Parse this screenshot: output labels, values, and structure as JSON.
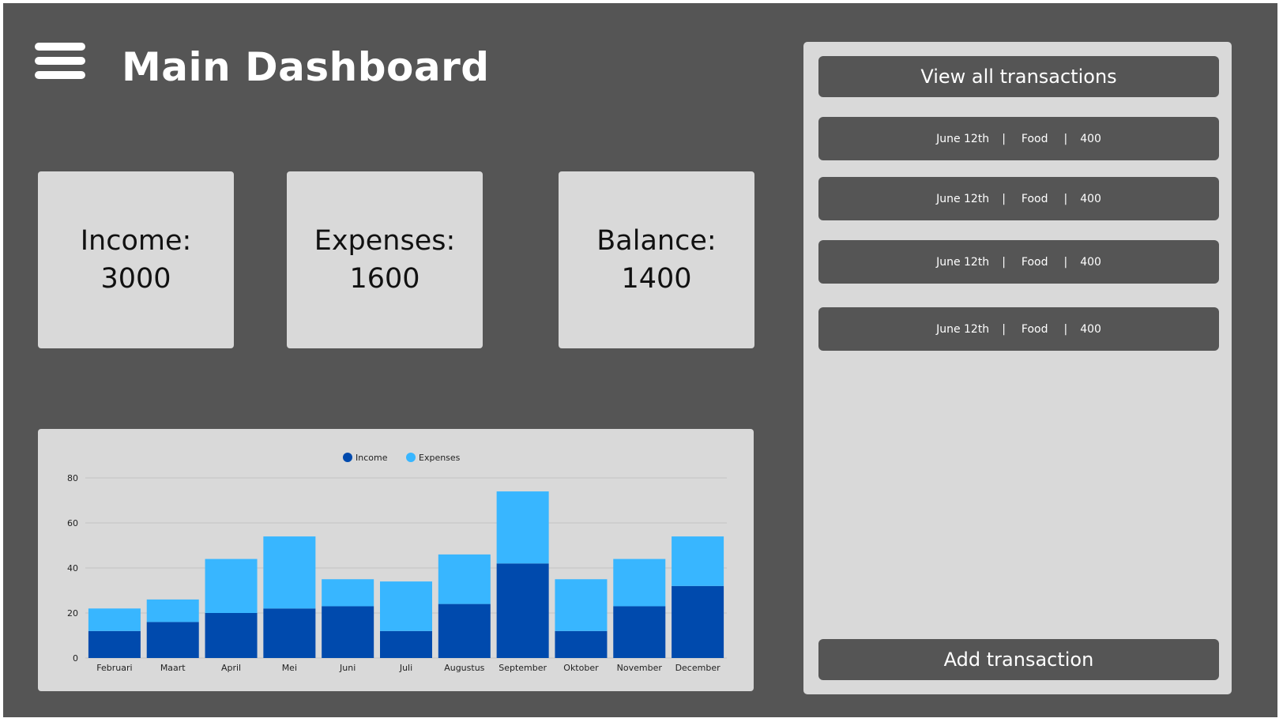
{
  "header": {
    "title": "Main Dashboard",
    "menu_icon": "hamburger-menu-icon"
  },
  "stats": [
    {
      "label": "Income:",
      "value": "3000"
    },
    {
      "label": "Expenses:",
      "value": "1600"
    },
    {
      "label": "Balance:",
      "value": "1400"
    }
  ],
  "transactions_panel": {
    "view_all_label": "View all transactions",
    "add_label": "Add transaction",
    "items": [
      {
        "date": "June 12th",
        "category": "Food",
        "amount": "400",
        "separator": "|"
      },
      {
        "date": "June 12th",
        "category": "Food",
        "amount": "400",
        "separator": "|"
      },
      {
        "date": "June 12th",
        "category": "Food",
        "amount": "400",
        "separator": "|"
      },
      {
        "date": "June 12th",
        "category": "Food",
        "amount": "400",
        "separator": "|"
      }
    ]
  },
  "colors": {
    "background": "#555555",
    "card": "#d9d9d9",
    "income": "#004aad",
    "expenses": "#38b6ff"
  },
  "chart_data": {
    "type": "bar",
    "stacked": true,
    "categories": [
      "Februari",
      "Maart",
      "April",
      "Mei",
      "Juni",
      "Juli",
      "Augustus",
      "September",
      "Oktober",
      "November",
      "December"
    ],
    "series": [
      {
        "name": "Income",
        "color": "#004aad",
        "values": [
          12,
          16,
          20,
          22,
          23,
          12,
          24,
          42,
          12,
          23,
          32
        ]
      },
      {
        "name": "Expenses",
        "color": "#38b6ff",
        "values": [
          10,
          10,
          24,
          32,
          12,
          22,
          22,
          32,
          23,
          21,
          22
        ]
      }
    ],
    "title": "",
    "xlabel": "",
    "ylabel": "",
    "ylim": [
      0,
      80
    ],
    "yticks": [
      0,
      20,
      40,
      60,
      80
    ],
    "grid": true,
    "legend_position": "top-center"
  }
}
